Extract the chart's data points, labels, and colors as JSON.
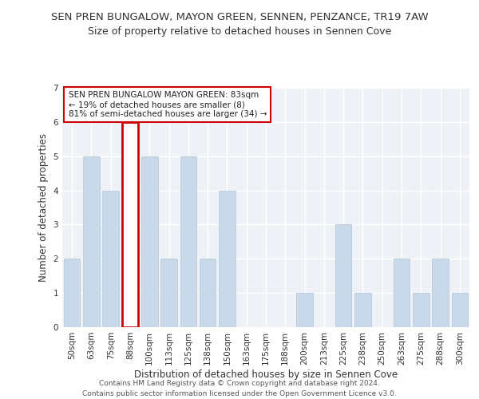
{
  "title": "SEN PREN BUNGALOW, MAYON GREEN, SENNEN, PENZANCE, TR19 7AW",
  "subtitle": "Size of property relative to detached houses in Sennen Cove",
  "xlabel": "Distribution of detached houses by size in Sennen Cove",
  "ylabel": "Number of detached properties",
  "categories": [
    "50sqm",
    "63sqm",
    "75sqm",
    "88sqm",
    "100sqm",
    "113sqm",
    "125sqm",
    "138sqm",
    "150sqm",
    "163sqm",
    "175sqm",
    "188sqm",
    "200sqm",
    "213sqm",
    "225sqm",
    "238sqm",
    "250sqm",
    "263sqm",
    "275sqm",
    "288sqm",
    "300sqm"
  ],
  "values": [
    2,
    5,
    4,
    6,
    5,
    2,
    5,
    2,
    4,
    0,
    0,
    0,
    1,
    0,
    3,
    1,
    0,
    2,
    1,
    2,
    1
  ],
  "bar_color": "#c9d9ea",
  "bar_edgecolor": "#b0c4d8",
  "highlight_index": 3,
  "highlight_edgecolor": "#cc0000",
  "annotation_box_text": "SEN PREN BUNGALOW MAYON GREEN: 83sqm\n← 19% of detached houses are smaller (8)\n81% of semi-detached houses are larger (34) →",
  "ylim": [
    0,
    7
  ],
  "yticks": [
    0,
    1,
    2,
    3,
    4,
    5,
    6,
    7
  ],
  "footer_line1": "Contains HM Land Registry data © Crown copyright and database right 2024.",
  "footer_line2": "Contains public sector information licensed under the Open Government Licence v3.0.",
  "background_color": "#eef2f7",
  "title_fontsize": 9.5,
  "subtitle_fontsize": 9,
  "axis_label_fontsize": 8.5,
  "tick_fontsize": 7.5,
  "annotation_fontsize": 7.5,
  "footer_fontsize": 6.5
}
